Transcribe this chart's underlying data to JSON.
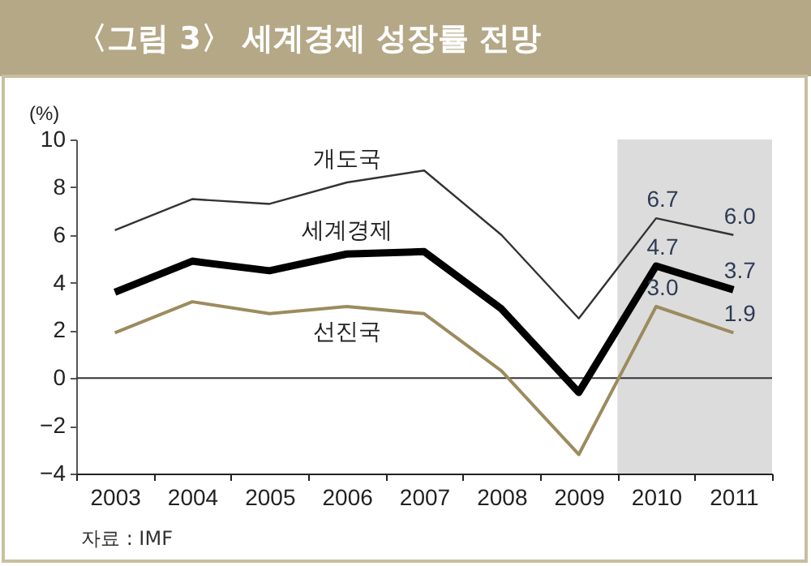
{
  "chart_data": {
    "type": "line",
    "title": "〈그림 3〉 세계경제 성장률 전망",
    "ylabel": "(%)",
    "annotations": [
      "자료 : IMF"
    ],
    "categories": [
      "2003",
      "2004",
      "2005",
      "2006",
      "2007",
      "2008",
      "2009",
      "2010",
      "2011"
    ],
    "series": [
      {
        "name": "개도국",
        "color": "#333333",
        "values": [
          6.2,
          7.5,
          7.3,
          8.2,
          8.7,
          6.0,
          2.5,
          6.7,
          6.0
        ],
        "value_labels": [
          null,
          null,
          null,
          null,
          null,
          null,
          null,
          "6.7",
          "6.0"
        ]
      },
      {
        "name": "세계경제",
        "color": "#000000",
        "values": [
          3.6,
          4.9,
          4.5,
          5.2,
          5.3,
          2.9,
          -0.6,
          4.7,
          3.7
        ],
        "value_labels": [
          null,
          null,
          null,
          null,
          null,
          null,
          null,
          "4.7",
          "3.7"
        ]
      },
      {
        "name": "선진국",
        "color": "#9c8b5e",
        "values": [
          1.9,
          3.2,
          2.7,
          3.0,
          2.7,
          0.3,
          -3.2,
          3.0,
          1.9
        ],
        "value_labels": [
          null,
          null,
          null,
          null,
          null,
          null,
          null,
          "3.0",
          "1.9"
        ]
      }
    ],
    "ylim": [
      -4,
      10
    ],
    "yticks": [
      -4,
      -2,
      0,
      2,
      4,
      6,
      8,
      10
    ],
    "line_style": "solid",
    "ref_lines": [
      {
        "axis": "y",
        "value": 0,
        "color": "#333333"
      }
    ],
    "bands": [
      {
        "axis": "x",
        "from": "2010",
        "to": "2011",
        "color": "#dcdcdc"
      }
    ]
  }
}
